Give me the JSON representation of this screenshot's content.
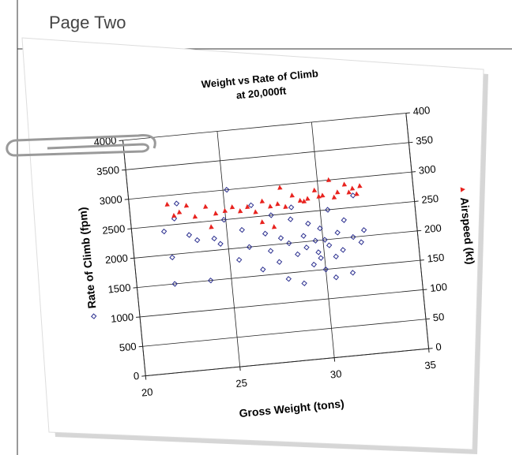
{
  "page_title": "Page Two",
  "chart_data": {
    "type": "scatter",
    "title": "Weight vs Rate of Climb",
    "subtitle": "at 20,000ft",
    "x_label": "Gross Weight (tons)",
    "xlim": [
      20,
      35
    ],
    "xticks": [
      20,
      25,
      30,
      35
    ],
    "ylim": [
      0,
      4000
    ],
    "yticks": [
      0,
      500,
      1000,
      1500,
      2000,
      2500,
      3000,
      3500,
      4000
    ],
    "y2lim": [
      0,
      400
    ],
    "y2ticks": [
      0,
      50,
      100,
      150,
      200,
      250,
      300,
      350,
      400
    ],
    "grid": true,
    "series": [
      {
        "name": "Rate of Climb (fpm)",
        "color": "#2b2f8f",
        "marker": "diamond",
        "x": [
          21.7,
          22.0,
          22.0,
          22.3,
          22.5,
          23.0,
          23.4,
          23.9,
          24.3,
          24.6,
          24.9,
          25.2,
          25.5,
          25.8,
          26.1,
          26.4,
          26.7,
          27.0,
          27.2,
          27.4,
          27.6,
          27.8,
          28.0,
          28.2,
          28.4,
          28.6,
          28.8,
          29.0,
          29.1,
          29.3,
          29.4,
          29.6,
          29.7,
          29.9,
          30.0,
          30.1,
          30.3,
          30.4,
          30.6,
          30.8,
          31.0,
          31.2,
          31.4,
          31.6,
          31.8,
          32.0,
          32.2,
          28.5,
          29.8,
          30.5
        ],
        "values": [
          2400,
          1500,
          1950,
          2600,
          2850,
          2300,
          2200,
          1500,
          2200,
          2100,
          2500,
          3000,
          1800,
          2300,
          2000,
          2700,
          1600,
          2200,
          1900,
          2500,
          1700,
          2100,
          1400,
          2000,
          2400,
          1800,
          1300,
          2100,
          1900,
          2300,
          1600,
          2000,
          1800,
          2200,
          1500,
          2000,
          1900,
          2500,
          1700,
          2100,
          1800,
          2300,
          1400,
          2000,
          2700,
          1900,
          2100,
          2600,
          1700,
          1350
        ]
      },
      {
        "name": "Airspeed (kt)",
        "color": "#e8231f",
        "marker": "triangle",
        "axis": "y2",
        "x": [
          22.0,
          22.3,
          22.6,
          23.0,
          23.4,
          24.0,
          24.5,
          25.0,
          25.4,
          25.8,
          26.2,
          26.6,
          27.0,
          27.4,
          27.8,
          28.2,
          28.6,
          29.0,
          29.4,
          29.8,
          30.2,
          30.6,
          31.0,
          31.4,
          31.8,
          32.2,
          24.2,
          26.9,
          27.5,
          28.0,
          29.2,
          30.0,
          30.8,
          31.6,
          32.0
        ],
        "values": [
          285,
          265,
          270,
          280,
          260,
          275,
          262,
          265,
          270,
          262,
          268,
          258,
          275,
          265,
          268,
          262,
          280,
          270,
          272,
          285,
          275,
          300,
          278,
          290,
          282,
          285,
          240,
          240,
          230,
          295,
          268,
          274,
          270,
          276,
          272
        ]
      }
    ]
  }
}
